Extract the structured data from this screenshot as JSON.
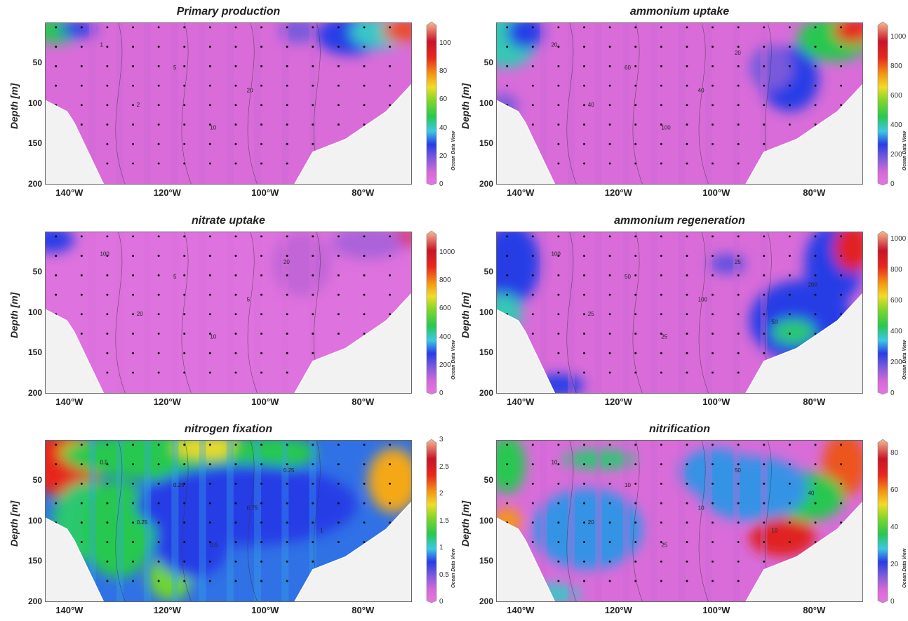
{
  "figure": {
    "brand": "Ocean Data View",
    "xlabel": "",
    "ylabel": "Depth [m]"
  },
  "chart_data": [
    {
      "type": "heatmap",
      "title": "Primary production",
      "ylabel": "Depth [m]",
      "x_ticks": [
        "140°W",
        "120°W",
        "100°W",
        "80°W"
      ],
      "y_ticks": [
        "50",
        "100",
        "150",
        "200"
      ],
      "xlim": [
        -145,
        -70
      ],
      "ylim": [
        200,
        0
      ],
      "colorbar": {
        "ticks": [
          "0",
          "20",
          "40",
          "60",
          "80",
          "100"
        ],
        "range": [
          0,
          115
        ]
      },
      "contour_labels": [
        "1",
        "2",
        "5",
        "10",
        "20"
      ]
    },
    {
      "type": "heatmap",
      "title": "ammonium uptake",
      "ylabel": "Depth [m]",
      "x_ticks": [
        "140°W",
        "120°W",
        "100°W",
        "80°W"
      ],
      "y_ticks": [
        "50",
        "100",
        "150",
        "200"
      ],
      "xlim": [
        -145,
        -70
      ],
      "ylim": [
        200,
        0
      ],
      "colorbar": {
        "ticks": [
          "0",
          "200",
          "400",
          "600",
          "800",
          "1000"
        ],
        "range": [
          0,
          1100
        ]
      },
      "contour_labels": [
        "20",
        "40",
        "60",
        "100",
        "40",
        "20"
      ]
    },
    {
      "type": "heatmap",
      "title": "nitrate uptake",
      "ylabel": "Depth [m]",
      "x_ticks": [
        "140°W",
        "120°W",
        "100°W",
        "80°W"
      ],
      "y_ticks": [
        "50",
        "100",
        "150",
        "200"
      ],
      "xlim": [
        -145,
        -70
      ],
      "ylim": [
        200,
        0
      ],
      "colorbar": {
        "ticks": [
          "0",
          "200",
          "400",
          "600",
          "800",
          "1000"
        ],
        "range": [
          0,
          1150
        ]
      },
      "contour_labels": [
        "100",
        "20",
        "5",
        "10",
        "5",
        "20"
      ]
    },
    {
      "type": "heatmap",
      "title": "ammonium regeneration",
      "ylabel": "Depth [m]",
      "x_ticks": [
        "140°W",
        "120°W",
        "100°W",
        "80°W"
      ],
      "y_ticks": [
        "50",
        "100",
        "150",
        "200"
      ],
      "xlim": [
        -145,
        -70
      ],
      "ylim": [
        200,
        0
      ],
      "colorbar": {
        "ticks": [
          "0",
          "200",
          "400",
          "600",
          "800",
          "1000"
        ],
        "range": [
          0,
          1050
        ]
      },
      "contour_labels": [
        "100",
        "25",
        "50",
        "25",
        "100",
        "25",
        "50",
        "200"
      ]
    },
    {
      "type": "heatmap",
      "title": "nitrogen fixation",
      "ylabel": "Depth [m]",
      "x_ticks": [
        "140°W",
        "120°W",
        "100°W",
        "80°W"
      ],
      "y_ticks": [
        "50",
        "100",
        "150",
        "200"
      ],
      "xlim": [
        -145,
        -70
      ],
      "ylim": [
        200,
        0
      ],
      "colorbar": {
        "ticks": [
          "0",
          "0.5",
          "1",
          "1.5",
          "2",
          "2.5",
          "3"
        ],
        "range": [
          0,
          3
        ]
      },
      "contour_labels": [
        "0.5",
        "0.25",
        "0.25",
        "0.5",
        "0.75",
        "0.25",
        "1"
      ]
    },
    {
      "type": "heatmap",
      "title": "nitrification",
      "ylabel": "Depth [m]",
      "x_ticks": [
        "140°W",
        "120°W",
        "100°W",
        "80°W"
      ],
      "y_ticks": [
        "50",
        "100",
        "150",
        "200"
      ],
      "xlim": [
        -145,
        -70
      ],
      "ylim": [
        200,
        0
      ],
      "colorbar": {
        "ticks": [
          "0",
          "20",
          "40",
          "60",
          "80"
        ],
        "range": [
          0,
          87
        ]
      },
      "contour_labels": [
        "10",
        "20",
        "10",
        "25",
        "10",
        "50",
        "10",
        "40"
      ]
    }
  ]
}
